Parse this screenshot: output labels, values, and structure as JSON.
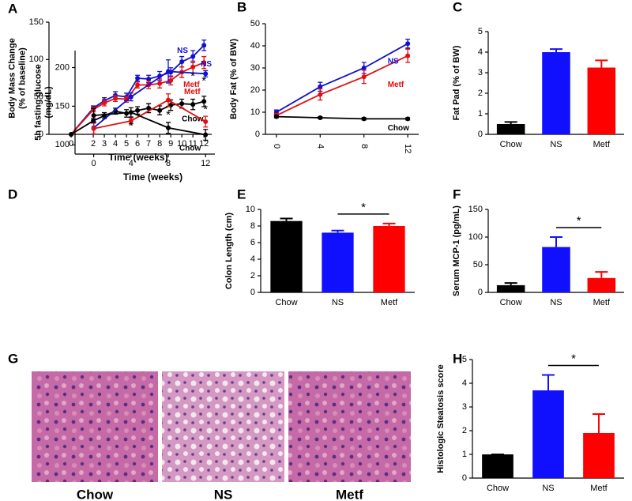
{
  "chart_data": [
    {
      "panel": "A",
      "type": "line",
      "xlabel": "Time (weeks)",
      "ylabel": [
        "Body Mass Change",
        "(% of baseline)"
      ],
      "x": [
        0,
        2,
        3,
        4,
        5,
        6,
        7,
        8,
        9,
        10,
        11,
        12
      ],
      "xlim": [
        -2,
        12.7
      ],
      "xticks": [
        0,
        2,
        3,
        4,
        5,
        6,
        7,
        8,
        9,
        10,
        11,
        12
      ],
      "ylim": [
        0,
        150
      ],
      "yticks": [
        0,
        50,
        100,
        150
      ],
      "series": [
        {
          "name": "NS",
          "color": "#1010d0",
          "values": [
            0,
            35,
            45,
            52,
            50,
            75,
            74,
            78,
            83,
            97,
            104,
            119
          ],
          "errors": [
            0,
            3,
            4,
            5,
            5,
            4,
            5,
            6,
            6,
            7,
            8,
            7
          ]
        },
        {
          "name": "Metf",
          "color": "#e01010",
          "values": [
            0,
            33,
            42,
            48,
            47,
            66,
            66,
            68,
            72,
            83,
            90,
            96
          ],
          "errors": [
            0,
            3,
            4,
            4,
            4,
            4,
            5,
            6,
            6,
            7,
            8,
            8
          ]
        },
        {
          "name": "Chow",
          "color": "#000000",
          "values": [
            0,
            18,
            25,
            31,
            28,
            32,
            35,
            32,
            39,
            41,
            40,
            44
          ],
          "errors": [
            0,
            3,
            4,
            4,
            5,
            5,
            6,
            6,
            7,
            6,
            7,
            7
          ]
        }
      ],
      "annotations": [
        {
          "text": "*",
          "x": 11,
          "y": 77
        },
        {
          "text": "*",
          "x": 12,
          "y": 71
        }
      ]
    },
    {
      "panel": "B",
      "type": "line",
      "ylabel": "Body Fat (% of BW)",
      "x": [
        0,
        4,
        8,
        12
      ],
      "xlim": [
        -1,
        13
      ],
      "xticks": [
        0,
        4,
        8,
        12
      ],
      "ylim": [
        0,
        50
      ],
      "yticks": [
        0,
        10,
        20,
        30,
        40,
        50
      ],
      "series": [
        {
          "name": "NS",
          "color": "#1010d0",
          "values": [
            10,
            21.5,
            30,
            41
          ],
          "errors": [
            1,
            2,
            2.5,
            2
          ]
        },
        {
          "name": "Metf",
          "color": "#e01010",
          "values": [
            8.5,
            18,
            26,
            35.5
          ],
          "errors": [
            1,
            2.5,
            3,
            3
          ]
        },
        {
          "name": "Chow",
          "color": "#000000",
          "values": [
            8,
            7.5,
            7,
            7
          ],
          "errors": [
            0.5,
            0.5,
            0.5,
            0.5
          ]
        }
      ]
    },
    {
      "panel": "C",
      "type": "bar",
      "ylabel": "Fat Pad (% of BW)",
      "categories": [
        "Chow",
        "NS",
        "Metf"
      ],
      "colors": [
        "#000000",
        "#1010ff",
        "#ff0000"
      ],
      "values": [
        0.5,
        4.0,
        3.25
      ],
      "errors": [
        0.1,
        0.15,
        0.35
      ],
      "ylim": [
        0,
        5
      ],
      "yticks": [
        0,
        1,
        2,
        3,
        4,
        5
      ]
    },
    {
      "panel": "D",
      "type": "line",
      "xlabel": "Time (weeks)",
      "ylabel": [
        "5h fasting glucose",
        "(mg/dL)"
      ],
      "x": [
        0,
        4,
        8,
        12
      ],
      "xlim": [
        -2,
        13
      ],
      "xticks": [
        0,
        4,
        8,
        12
      ],
      "ylim": [
        88,
        222
      ],
      "yticks": [
        100,
        150,
        200
      ],
      "series": [
        {
          "name": "NS",
          "color": "#1010d0",
          "values": [
            122,
            162,
            195,
            192
          ],
          "errors": [
            8,
            5,
            15,
            4
          ]
        },
        {
          "name": "Metf",
          "color": "#e01010",
          "values": [
            121,
            131,
            158,
            130
          ],
          "errors": [
            7,
            4,
            8,
            7
          ]
        },
        {
          "name": "Chow",
          "color": "#000000",
          "values": [
            138,
            142,
            122,
            113
          ],
          "errors": [
            9,
            6,
            7,
            7
          ]
        }
      ],
      "annotations": [
        {
          "text": "*",
          "x": 4,
          "y": 124
        },
        {
          "text": "*",
          "x": 8,
          "y": 138
        },
        {
          "text": "*",
          "x": 12,
          "y": 145
        }
      ]
    },
    {
      "panel": "E",
      "type": "bar",
      "ylabel": "Colon Length (cm)",
      "categories": [
        "Chow",
        "NS",
        "Metf"
      ],
      "colors": [
        "#000000",
        "#1010ff",
        "#ff0000"
      ],
      "values": [
        8.6,
        7.2,
        8.0
      ],
      "errors": [
        0.3,
        0.25,
        0.3
      ],
      "ylim": [
        0,
        10
      ],
      "yticks": [
        0,
        2,
        4,
        6,
        8,
        10
      ],
      "significance": [
        {
          "label": "*",
          "from": 1,
          "to": 2
        }
      ]
    },
    {
      "panel": "F",
      "type": "bar",
      "ylabel": "Serum MCP-1 (pg/mL)",
      "categories": [
        "Chow",
        "NS",
        "Metf"
      ],
      "colors": [
        "#000000",
        "#1010ff",
        "#ff0000"
      ],
      "values": [
        13,
        82,
        26
      ],
      "errors": [
        4,
        18,
        11
      ],
      "ylim": [
        0,
        150
      ],
      "yticks": [
        0,
        50,
        100,
        150
      ],
      "significance": [
        {
          "label": "*",
          "from": 1,
          "to": 2
        }
      ]
    },
    {
      "panel": "G",
      "type": "image",
      "labels": [
        "Chow",
        "NS",
        "Metf"
      ]
    },
    {
      "panel": "H",
      "type": "bar",
      "ylabel": "Histologic Steatosis score",
      "categories": [
        "Chow",
        "NS",
        "Metf"
      ],
      "colors": [
        "#000000",
        "#1010ff",
        "#ff0000"
      ],
      "values": [
        1.0,
        3.7,
        1.9
      ],
      "errors": [
        0,
        0.65,
        0.8
      ],
      "ylim": [
        0,
        5
      ],
      "yticks": [
        0,
        1,
        2,
        3,
        4,
        5
      ],
      "significance": [
        {
          "label": "*",
          "from": 1,
          "to": 2
        }
      ]
    }
  ]
}
